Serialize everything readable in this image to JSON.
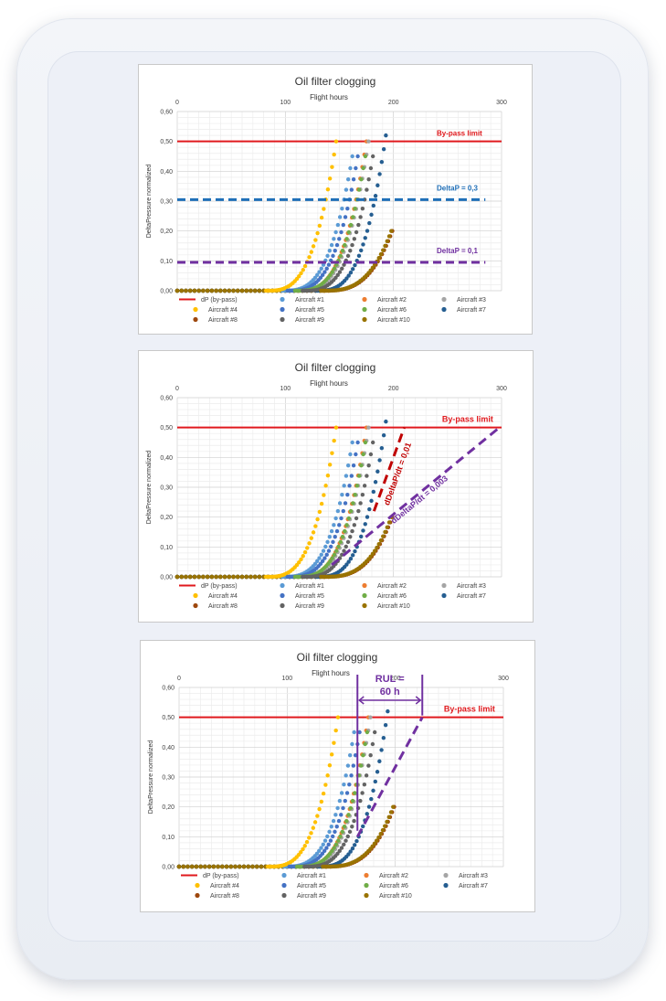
{
  "chart_data": [
    {
      "type": "scatter",
      "title": "Oil filter clogging",
      "xlabel": "Flight hours",
      "ylabel": "DeltaPressure normalized",
      "xlim": [
        0,
        300
      ],
      "ylim": [
        0,
        0.6
      ],
      "x_ticks": [
        "0",
        "100",
        "200",
        "300"
      ],
      "y_ticks": [
        "0,00",
        "0,10",
        "0,20",
        "0,30",
        "0,40",
        "0,50",
        "0,60"
      ],
      "grid": true,
      "legend_position": "bottom",
      "series": [
        {
          "name": "dP (by-pass)",
          "kind": "line",
          "color": "#e0191d",
          "x": [
            0,
            300
          ],
          "y": [
            0.5,
            0.5
          ]
        },
        {
          "name": "Aircraft #1",
          "color": "#5b9bd5",
          "knee": 164,
          "end": [
            162,
            0.45
          ]
        },
        {
          "name": "Aircraft #2",
          "color": "#ed7d31",
          "knee": 176,
          "end": [
            175,
            0.5
          ]
        },
        {
          "name": "Aircraft #3",
          "color": "#a5a5a5",
          "knee": 177,
          "end": [
            177,
            0.5
          ]
        },
        {
          "name": "Aircraft #4",
          "color": "#ffc000",
          "knee": 147,
          "end": [
            147,
            0.5
          ]
        },
        {
          "name": "Aircraft #5",
          "color": "#4472c4",
          "knee": 168,
          "end": [
            167,
            0.45
          ]
        },
        {
          "name": "Aircraft #6",
          "color": "#70ad47",
          "knee": 175,
          "end": [
            174,
            0.45
          ]
        },
        {
          "name": "Aircraft #7",
          "color": "#255e91",
          "knee": 194,
          "end": [
            193,
            0.52
          ]
        },
        {
          "name": "Aircraft #8",
          "color": "#9e480e",
          "knee": 200,
          "end": [
            199,
            0.2
          ]
        },
        {
          "name": "Aircraft #9",
          "color": "#636363",
          "knee": 182,
          "end": [
            181,
            0.45
          ]
        },
        {
          "name": "Aircraft #10",
          "color": "#997300",
          "knee": 198,
          "end": [
            198,
            0.2
          ]
        }
      ],
      "thresholds": [
        {
          "label": "DeltaP = 0,3",
          "y": 0.305,
          "color": "#1f6fb8"
        },
        {
          "label": "DeltaP = 0,1",
          "y": 0.095,
          "color": "#7030a0"
        }
      ],
      "annotations": [
        {
          "text": "By-pass limit",
          "color": "#e0191d"
        }
      ]
    },
    {
      "type": "scatter",
      "title": "Oil filter clogging",
      "xlabel": "Flight hours",
      "ylabel": "DeltaPressure normalized",
      "xlim": [
        0,
        300
      ],
      "ylim": [
        0,
        0.6
      ],
      "x_ticks": [
        "0",
        "100",
        "200",
        "300"
      ],
      "y_ticks": [
        "0,00",
        "0,10",
        "0,20",
        "0,30",
        "0,40",
        "0,50",
        "0,60"
      ],
      "grid": true,
      "legend_position": "bottom",
      "trend_lines": [
        {
          "label": "dDeltaP/dt = 0,01",
          "color": "#c00000",
          "x": [
            182,
            210
          ],
          "y": [
            0.22,
            0.5
          ]
        },
        {
          "label": "dDeltaP/dt = 0,003",
          "color": "#7030a0",
          "x": [
            143,
            298
          ],
          "y": [
            0.04,
            0.5
          ]
        }
      ],
      "annotations": [
        {
          "text": "By-pass limit",
          "color": "#e0191d"
        }
      ]
    },
    {
      "type": "scatter",
      "title": "Oil filter clogging",
      "xlabel": "Flight hours",
      "ylabel": "DeltaPressure normalized",
      "xlim": [
        0,
        300
      ],
      "ylim": [
        0,
        0.6
      ],
      "x_ticks": [
        "0",
        "100",
        "200",
        "300"
      ],
      "y_ticks": [
        "0,00",
        "0,10",
        "0,20",
        "0,30",
        "0,40",
        "0,50",
        "0,60"
      ],
      "grid": true,
      "legend_position": "bottom",
      "trend_lines": [
        {
          "color": "#7030a0",
          "x": [
            165,
            225
          ],
          "y": [
            0.1,
            0.5
          ]
        }
      ],
      "rul": {
        "text_line1": "RUL =",
        "text_line2": "60 h",
        "from": 165,
        "to": 225,
        "color": "#7030a0"
      },
      "annotations": [
        {
          "text": "By-pass limit",
          "color": "#e0191d"
        }
      ]
    }
  ]
}
